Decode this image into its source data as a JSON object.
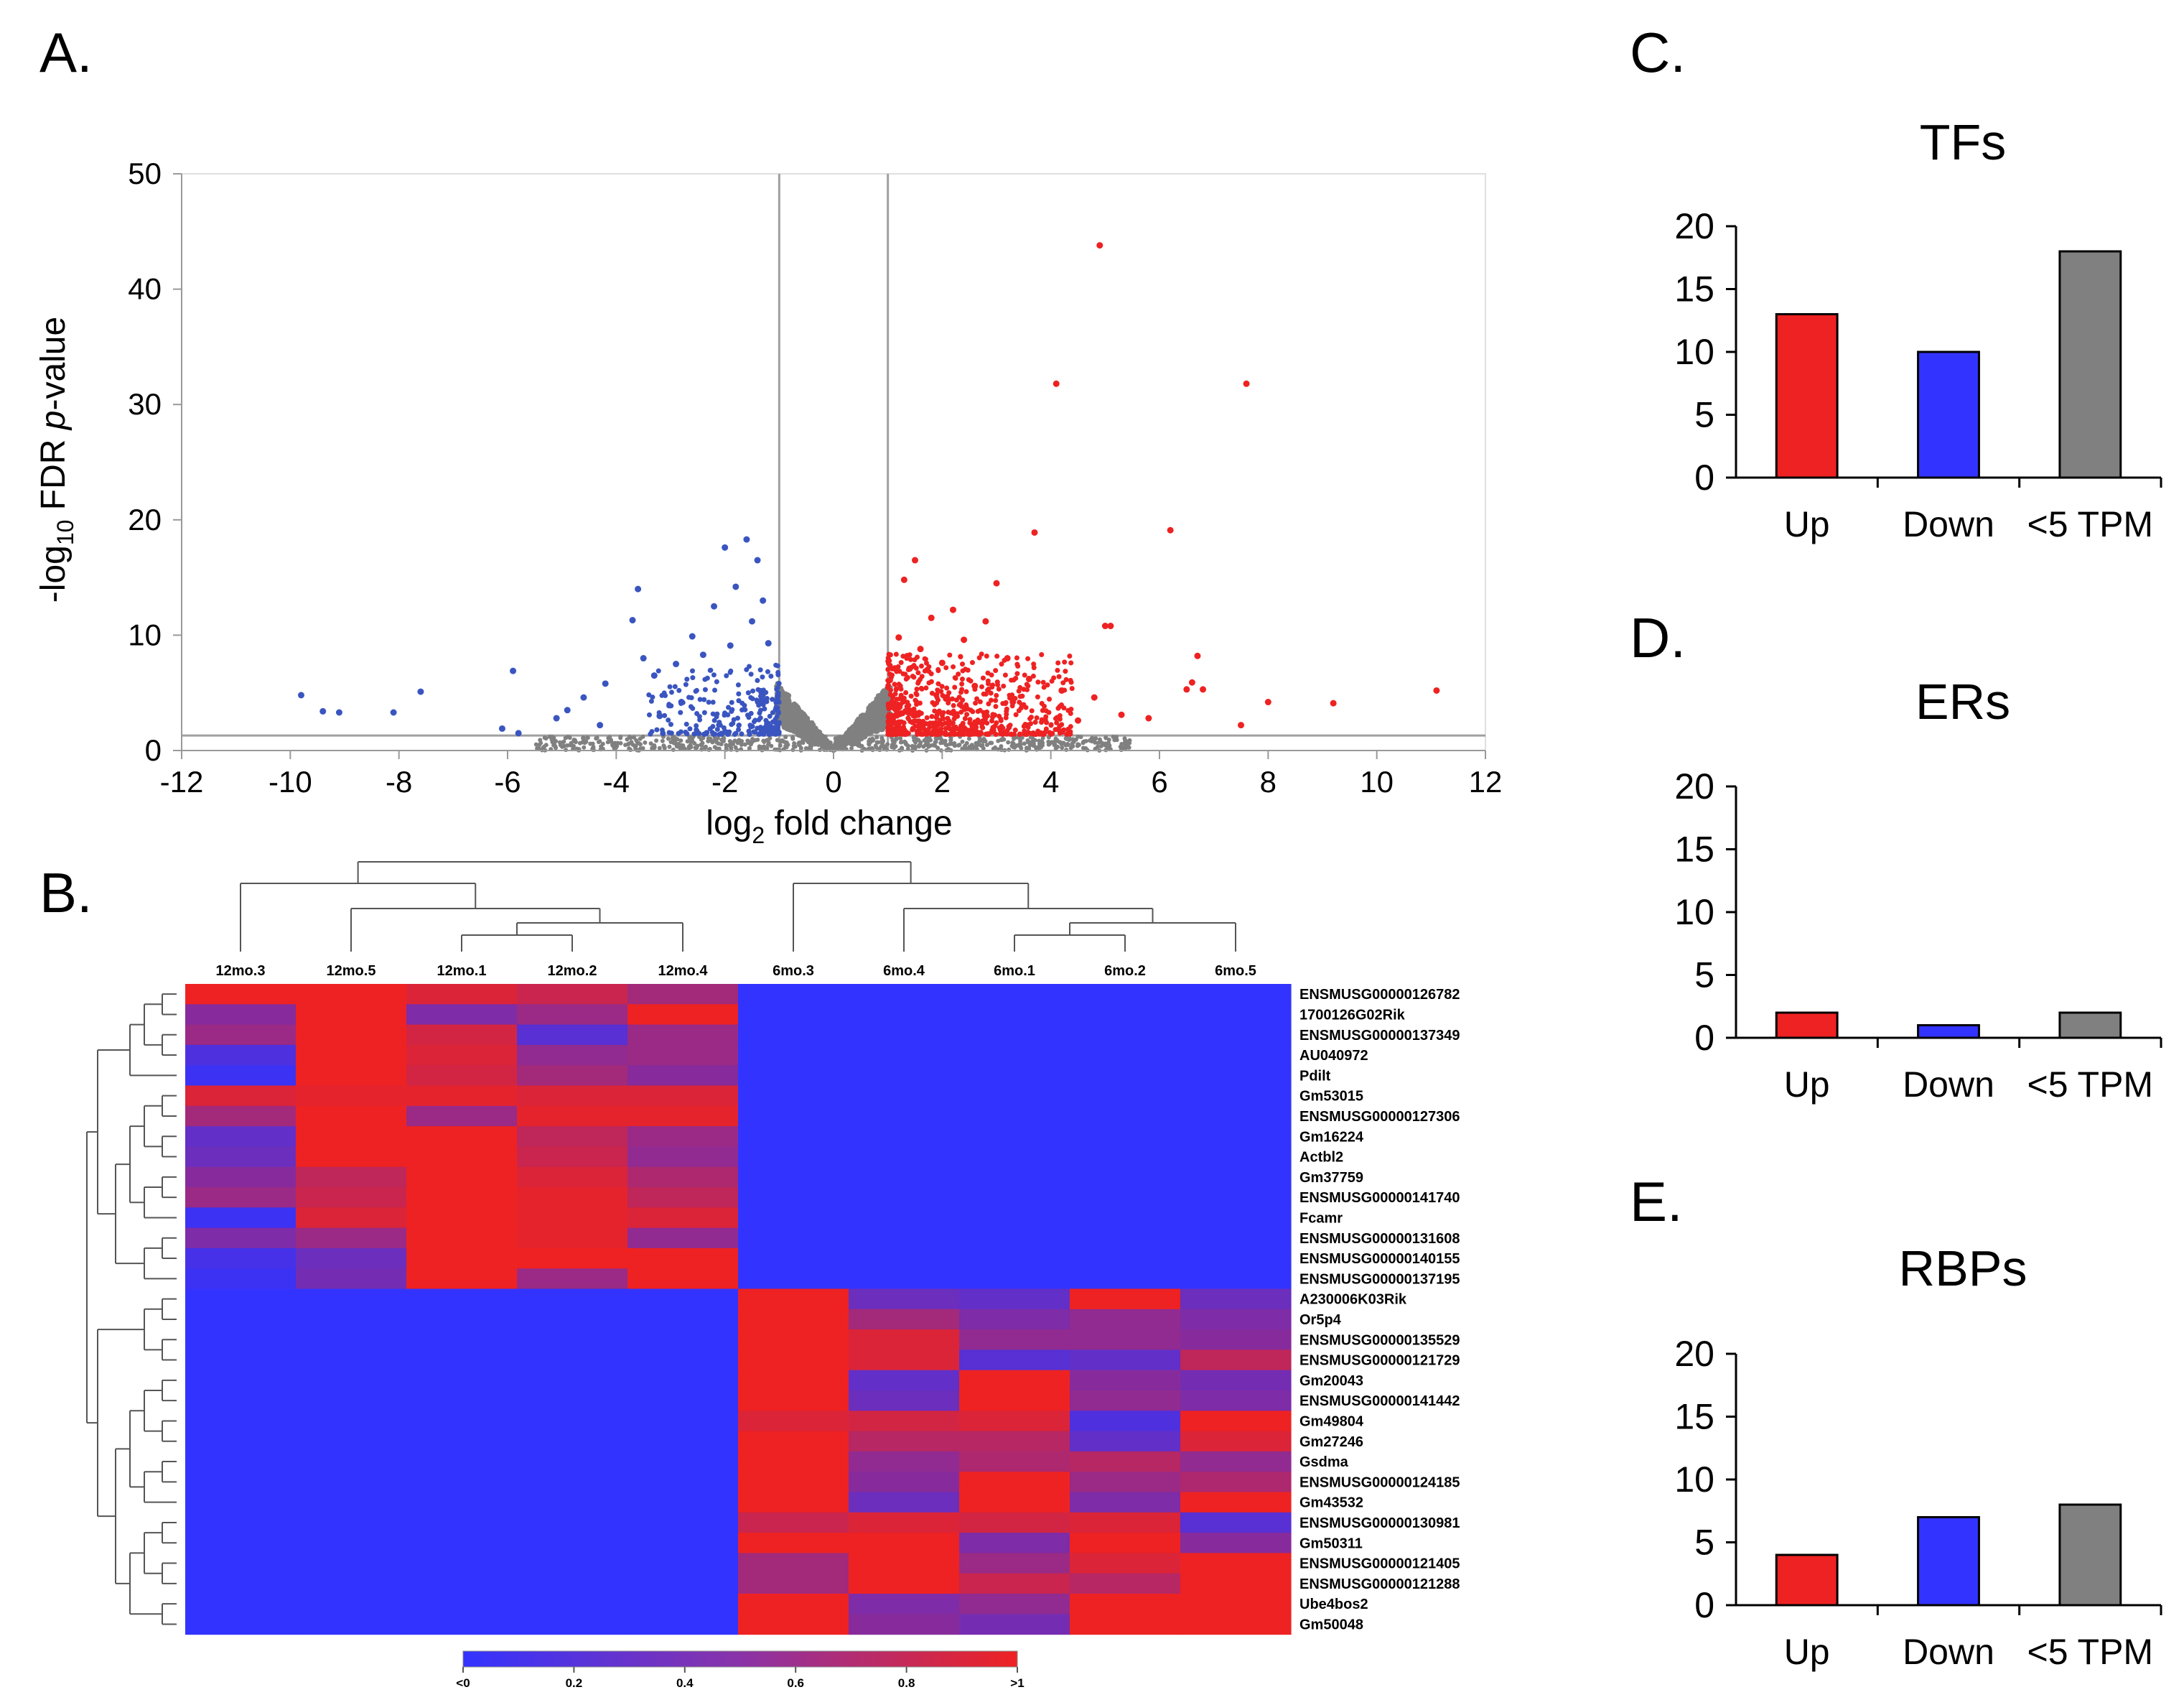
{
  "panels": {
    "a": "A.",
    "b": "B.",
    "c": "C.",
    "d": "D.",
    "e": "E."
  },
  "chart_data": [
    {
      "id": "volcano",
      "type": "scatter",
      "title": "",
      "xlabel": "log2 fold change",
      "ylabel_prefix": "-log10 FDR ",
      "ylabel_italic": "p",
      "ylabel_suffix": "-value",
      "xlim": [
        -12,
        12
      ],
      "ylim": [
        0,
        50
      ],
      "xticks": [
        "-12",
        "-10",
        "-8",
        "-6",
        "-4",
        "-2",
        "0",
        "2",
        "4",
        "6",
        "8",
        "10",
        "12"
      ],
      "yticks": [
        "0",
        "10",
        "20",
        "30",
        "40",
        "50"
      ],
      "thresholds": {
        "x": [
          -1,
          1
        ],
        "y": 1.3
      },
      "colors": {
        "up": "#ee2222",
        "down": "#3a55c0",
        "ns": "#808080"
      },
      "up_points": [
        [
          4.9,
          43.8
        ],
        [
          4.1,
          31.8
        ],
        [
          7.6,
          31.8
        ],
        [
          3.7,
          18.9
        ],
        [
          6.2,
          19.1
        ],
        [
          3.0,
          14.5
        ],
        [
          2.8,
          11.2
        ],
        [
          5.0,
          10.8
        ],
        [
          5.1,
          10.8
        ],
        [
          6.7,
          8.2
        ],
        [
          6.6,
          5.9
        ],
        [
          6.5,
          5.3
        ],
        [
          6.8,
          5.3
        ],
        [
          8.0,
          4.2
        ],
        [
          9.2,
          4.1
        ],
        [
          11.1,
          5.2
        ],
        [
          7.5,
          2.2
        ],
        [
          1.5,
          16.5
        ],
        [
          1.3,
          14.8
        ],
        [
          2.2,
          12.2
        ],
        [
          1.8,
          11.5
        ],
        [
          2.4,
          9.6
        ],
        [
          3.2,
          8.0
        ],
        [
          1.2,
          9.8
        ],
        [
          1.6,
          8.8
        ],
        [
          2.0,
          7.6
        ],
        [
          1.4,
          7.1
        ],
        [
          3.6,
          6.2
        ],
        [
          4.2,
          5.2
        ],
        [
          2.6,
          5.6
        ],
        [
          4.8,
          4.6
        ],
        [
          3.3,
          4.2
        ],
        [
          5.3,
          3.1
        ],
        [
          5.8,
          2.8
        ],
        [
          4.5,
          2.6
        ]
      ],
      "down_points": [
        [
          -9.8,
          4.8
        ],
        [
          -9.4,
          3.4
        ],
        [
          -9.1,
          3.3
        ],
        [
          -8.1,
          3.3
        ],
        [
          -7.6,
          5.1
        ],
        [
          -5.9,
          6.9
        ],
        [
          -6.1,
          1.9
        ],
        [
          -5.8,
          1.5
        ],
        [
          -4.9,
          3.5
        ],
        [
          -4.6,
          4.6
        ],
        [
          -4.2,
          5.8
        ],
        [
          -3.7,
          11.3
        ],
        [
          -3.6,
          14.0
        ],
        [
          -3.5,
          8.0
        ],
        [
          -3.3,
          6.5
        ],
        [
          -2.9,
          7.5
        ],
        [
          -2.6,
          9.9
        ],
        [
          -2.2,
          12.5
        ],
        [
          -2.0,
          17.6
        ],
        [
          -1.6,
          18.3
        ],
        [
          -1.8,
          14.2
        ],
        [
          -1.4,
          16.5
        ],
        [
          -1.3,
          13.0
        ],
        [
          -1.5,
          11.2
        ],
        [
          -1.9,
          9.1
        ],
        [
          -2.4,
          8.3
        ],
        [
          -1.2,
          9.3
        ],
        [
          -2.8,
          4.2
        ],
        [
          -3.2,
          3.0
        ],
        [
          -4.3,
          2.2
        ],
        [
          -5.1,
          2.8
        ]
      ]
    },
    {
      "id": "heatmap",
      "type": "heatmap",
      "columns": [
        "12mo.3",
        "12mo.5",
        "12mo.1",
        "12mo.2",
        "12mo.4",
        "6mo.3",
        "6mo.4",
        "6mo.1",
        "6mo.2",
        "6mo.5"
      ],
      "rows": [
        "ENSMUSG00000126782",
        "1700126G02Rik",
        "ENSMUSG00000137349",
        "AU040972",
        "Pdilt",
        "Gm53015",
        "ENSMUSG00000127306",
        "Gm16224",
        "Actbl2",
        "Gm37759",
        "ENSMUSG00000141740",
        "Fcamr",
        "ENSMUSG00000131608",
        "ENSMUSG00000140155",
        "ENSMUSG00000137195",
        "A230006K03Rik",
        "Or5p4",
        "ENSMUSG00000135529",
        "ENSMUSG00000121729",
        "Gm20043",
        "ENSMUSG00000141442",
        "Gm49804",
        "Gm27246",
        "Gsdma",
        "ENSMUSG00000124185",
        "Gm43532",
        "ENSMUSG00000130981",
        "Gm50311",
        "ENSMUSG00000121405",
        "ENSMUSG00000121288",
        "Ube4bos2",
        "Gm50048"
      ],
      "values": [
        [
          1.0,
          1.0,
          0.9,
          0.8,
          0.6,
          0,
          0,
          0,
          0,
          0
        ],
        [
          0.45,
          1.0,
          0.4,
          0.55,
          1.0,
          0,
          0,
          0,
          0,
          0
        ],
        [
          0.55,
          1.0,
          0.85,
          0.2,
          0.55,
          0,
          0,
          0,
          0,
          0
        ],
        [
          0.15,
          1.0,
          0.9,
          0.5,
          0.55,
          0,
          0,
          0,
          0,
          0
        ],
        [
          0.05,
          1.0,
          0.85,
          0.6,
          0.45,
          0,
          0,
          0,
          0,
          0
        ],
        [
          0.9,
          0.95,
          0.95,
          0.9,
          0.9,
          0,
          0,
          0,
          0,
          0
        ],
        [
          0.6,
          1.0,
          0.55,
          0.95,
          0.95,
          0,
          0,
          0,
          0,
          0
        ],
        [
          0.25,
          1.0,
          1.0,
          0.75,
          0.55,
          0,
          0,
          0,
          0,
          0
        ],
        [
          0.3,
          1.0,
          1.0,
          0.8,
          0.5,
          0,
          0,
          0,
          0,
          0
        ],
        [
          0.45,
          0.75,
          1.0,
          0.9,
          0.65,
          0,
          0,
          0,
          0,
          0
        ],
        [
          0.55,
          0.8,
          1.0,
          0.95,
          0.75,
          0,
          0,
          0,
          0,
          0
        ],
        [
          0.05,
          0.9,
          1.0,
          0.95,
          0.9,
          0,
          0,
          0,
          0,
          0
        ],
        [
          0.4,
          0.55,
          1.0,
          0.95,
          0.5,
          0,
          0,
          0,
          0,
          0
        ],
        [
          0.1,
          0.3,
          1.0,
          1.0,
          1.0,
          0,
          0,
          0,
          0,
          0
        ],
        [
          0.05,
          0.35,
          1.0,
          0.55,
          1.0,
          0,
          0,
          0,
          0,
          0
        ],
        [
          0,
          0,
          0,
          0,
          0,
          1.0,
          0.3,
          0.25,
          1.0,
          0.3
        ],
        [
          0,
          0,
          0,
          0,
          0,
          1.0,
          0.6,
          0.4,
          0.5,
          0.4
        ],
        [
          0,
          0,
          0,
          0,
          0,
          1.0,
          0.9,
          0.5,
          0.5,
          0.45
        ],
        [
          0,
          0,
          0,
          0,
          0,
          1.0,
          0.9,
          0.2,
          0.25,
          0.75
        ],
        [
          0,
          0,
          0,
          0,
          0,
          1.0,
          0.25,
          1.0,
          0.45,
          0.35
        ],
        [
          0,
          0,
          0,
          0,
          0,
          1.0,
          0.3,
          1.0,
          0.5,
          0.4
        ],
        [
          0,
          0,
          0,
          0,
          0,
          0.9,
          0.85,
          0.9,
          0.15,
          1.0
        ],
        [
          0,
          0,
          0,
          0,
          0,
          1.0,
          0.7,
          0.7,
          0.25,
          0.9
        ],
        [
          0,
          0,
          0,
          0,
          0,
          1.0,
          0.5,
          0.65,
          0.7,
          0.5
        ],
        [
          0,
          0,
          0,
          0,
          0,
          1.0,
          0.45,
          1.0,
          0.55,
          0.65
        ],
        [
          0,
          0,
          0,
          0,
          0,
          1.0,
          0.3,
          1.0,
          0.4,
          1.0
        ],
        [
          0,
          0,
          0,
          0,
          0,
          0.8,
          0.9,
          0.85,
          0.9,
          0.2
        ],
        [
          0,
          0,
          0,
          0,
          0,
          1.0,
          1.0,
          0.4,
          1.0,
          0.45
        ],
        [
          0,
          0,
          0,
          0,
          0,
          0.6,
          1.0,
          0.55,
          0.9,
          1.0
        ],
        [
          0,
          0,
          0,
          0,
          0,
          0.6,
          1.0,
          0.8,
          0.7,
          1.0
        ],
        [
          0,
          0,
          0,
          0,
          0,
          1.0,
          0.4,
          0.5,
          1.0,
          1.0
        ],
        [
          0,
          0,
          0,
          0,
          0,
          1.0,
          0.45,
          0.35,
          1.0,
          1.0
        ]
      ],
      "colorbar": {
        "low_color": "#3333ff",
        "high_color": "#ee2222",
        "ticks": [
          "<0",
          "0.2",
          "0.4",
          "0.6",
          "0.8",
          ">1"
        ]
      }
    },
    {
      "id": "tfs",
      "type": "bar",
      "title": "TFs",
      "categories": [
        "Up",
        "Down",
        "<5 TPM"
      ],
      "values": [
        13,
        10,
        18
      ],
      "colors": [
        "#ee2222",
        "#3333ff",
        "#808080"
      ],
      "ylim": [
        0,
        20
      ],
      "yticks": [
        "0",
        "5",
        "10",
        "15",
        "20"
      ]
    },
    {
      "id": "ers",
      "type": "bar",
      "title": "ERs",
      "categories": [
        "Up",
        "Down",
        "<5 TPM"
      ],
      "values": [
        2,
        1,
        2
      ],
      "colors": [
        "#ee2222",
        "#3333ff",
        "#808080"
      ],
      "ylim": [
        0,
        20
      ],
      "yticks": [
        "0",
        "5",
        "10",
        "15",
        "20"
      ]
    },
    {
      "id": "rbps",
      "type": "bar",
      "title": "RBPs",
      "categories": [
        "Up",
        "Down",
        "<5 TPM"
      ],
      "values": [
        4,
        7,
        8
      ],
      "colors": [
        "#ee2222",
        "#3333ff",
        "#808080"
      ],
      "ylim": [
        0,
        20
      ],
      "yticks": [
        "0",
        "5",
        "10",
        "15",
        "20"
      ]
    }
  ]
}
